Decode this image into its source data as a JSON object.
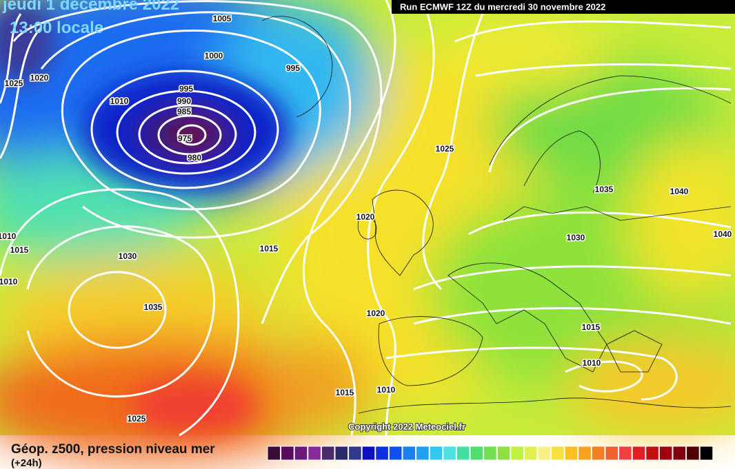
{
  "header": {
    "date": "jeudi 1 décembre 2022",
    "time": "13:00 locale",
    "run": "Run ECMWF 12Z du mercredi 30 novembre 2022"
  },
  "map": {
    "isobar_labels": [
      "1005",
      "1000",
      "995",
      "995",
      "990",
      "985",
      "975",
      "980",
      "1010",
      "1020",
      "1025",
      "1025",
      "1020",
      "1015",
      "1030",
      "1035",
      "1020",
      "1010",
      "1015",
      "1025",
      "1035",
      "1040",
      "1040",
      "1030",
      "1015",
      "1010",
      "1010",
      "1015",
      "1010"
    ],
    "copyright": "Copyright 2022 Meteociel.fr"
  },
  "footer": {
    "title": "Géop. z500, pression niveau mer",
    "subtitle": "(+24h)"
  }
}
